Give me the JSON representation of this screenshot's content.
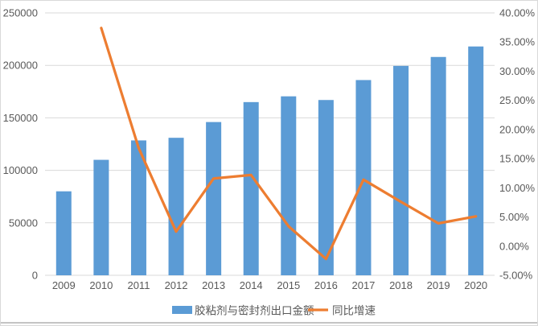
{
  "chart_data": {
    "type": "combo-bar-line",
    "title": "",
    "categories": [
      "2009",
      "2010",
      "2011",
      "2012",
      "2013",
      "2014",
      "2015",
      "2016",
      "2017",
      "2018",
      "2019",
      "2020"
    ],
    "series": [
      {
        "name": "胶粘剂与密封剂出口金额",
        "type": "bar",
        "axis": "left",
        "color": "#5B9BD5",
        "values": [
          80000,
          110000,
          128500,
          131000,
          146000,
          165000,
          170500,
          167000,
          186000,
          199500,
          208000,
          218000
        ]
      },
      {
        "name": "同比增速",
        "type": "line",
        "axis": "right",
        "color": "#ED7D31",
        "values": [
          null,
          37.4,
          16.8,
          2.5,
          11.6,
          12.2,
          3.4,
          -2.2,
          11.4,
          7.6,
          3.9,
          5.1
        ]
      }
    ],
    "left_axis": {
      "min": 0,
      "max": 250000,
      "step": 50000,
      "tick_labels": [
        "0",
        "50000",
        "100000",
        "150000",
        "200000",
        "250000"
      ],
      "tick_values": [
        0,
        50000,
        100000,
        150000,
        200000,
        250000
      ]
    },
    "right_axis": {
      "min": -5,
      "max": 40,
      "step": 5,
      "tick_labels": [
        "-5.00%",
        "0.00%",
        "5.00%",
        "10.00%",
        "15.00%",
        "20.00%",
        "25.00%",
        "30.00%",
        "35.00%",
        "40.00%"
      ],
      "tick_values": [
        -5,
        0,
        5,
        10,
        15,
        20,
        25,
        30,
        35,
        40
      ]
    },
    "grid": true,
    "legend_position": "bottom"
  },
  "legend": {
    "bar_label": "胶粘剂与密封剂出口金额",
    "line_label": "同比增速"
  },
  "colors": {
    "bar": "#5B9BD5",
    "line": "#ED7D31",
    "gridline": "#D9D9D9",
    "axis_text": "#595959",
    "frame_border": "#D9D9D9",
    "bottom_rule": "#C4C4C4",
    "background": "#FFFFFF"
  }
}
